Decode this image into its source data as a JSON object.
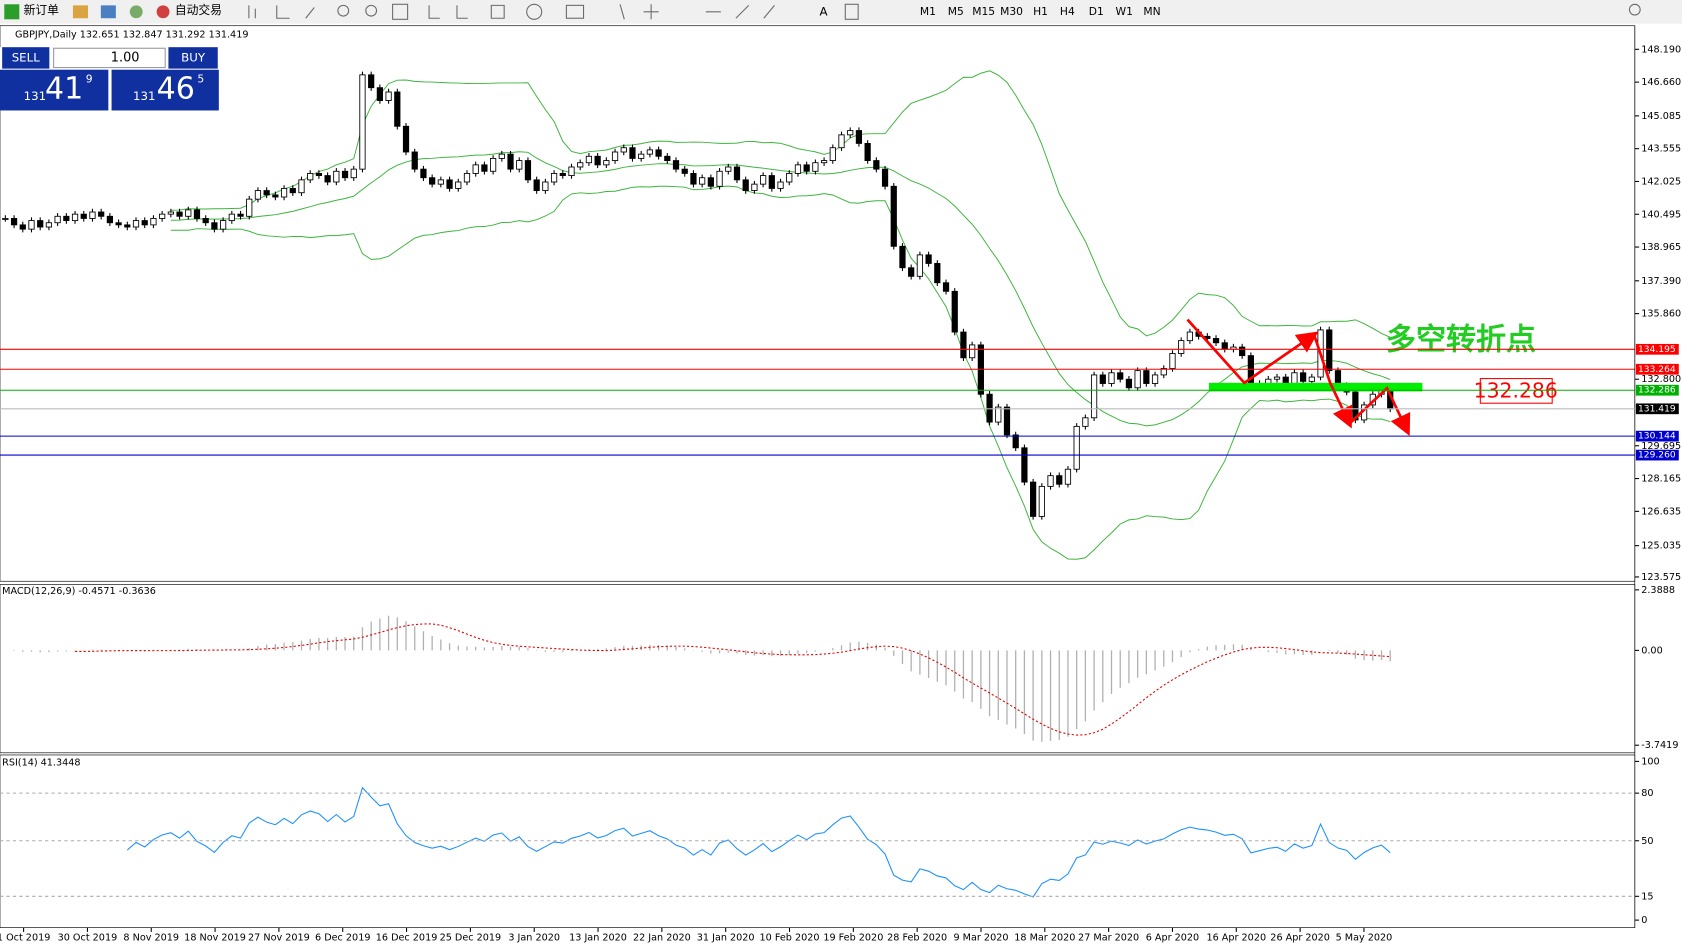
{
  "toolbar": {
    "new_order": "新订单",
    "auto_trading": "自动交易",
    "timeframes": [
      "M1",
      "M5",
      "M15",
      "M30",
      "H1",
      "H4",
      "D1",
      "W1",
      "MN"
    ]
  },
  "trade_panel": {
    "sell": "SELL",
    "buy": "BUY",
    "lots": "1.00",
    "bid": {
      "big": "131",
      "main": "41",
      "pip": "9"
    },
    "ask": {
      "big": "131",
      "main": "46",
      "pip": "5"
    }
  },
  "chart": {
    "header": "GBPJPY,Daily  132.651 132.847 131.292 131.419",
    "ylim": [
      123.375,
      149.29
    ],
    "yticks": [
      {
        "value": 148.19,
        "label": "148.190"
      },
      {
        "value": 146.66,
        "label": "146.660"
      },
      145.085,
      143.555,
      142.025,
      140.495,
      138.965,
      {
        "value": 137.39,
        "label": "137.390"
      },
      {
        "value": 135.86,
        "label": "135.860"
      },
      {
        "value": 132.8,
        "label": "132.800"
      },
      129.695,
      128.165,
      126.635,
      125.035,
      123.575
    ],
    "levels": [
      {
        "value": 134.195,
        "color": "#ff0000"
      },
      {
        "value": 133.264,
        "color": "#ff0000"
      },
      {
        "value": 132.286,
        "color": "#00b000"
      },
      {
        "value": 130.144,
        "color": "#0000cc"
      },
      {
        "value": 129.26,
        "label": "129.260",
        "color": "#0000cc"
      }
    ],
    "current": 131.419,
    "closes": [
      140.3,
      140.0,
      139.8,
      140.2,
      139.9,
      140.1,
      140.4,
      140.2,
      140.5,
      140.3,
      140.6,
      140.4,
      140.1,
      140.0,
      139.9,
      140.2,
      140.0,
      140.3,
      140.5,
      140.6,
      140.4,
      140.7,
      140.3,
      140.1,
      139.8,
      140.2,
      140.5,
      140.4,
      141.2,
      141.6,
      141.4,
      141.3,
      141.7,
      141.5,
      142.1,
      142.4,
      142.3,
      142.0,
      142.5,
      142.2,
      142.6,
      147.0,
      146.4,
      145.8,
      146.2,
      144.6,
      143.4,
      142.6,
      142.2,
      141.9,
      142.1,
      141.7,
      142.0,
      142.4,
      142.8,
      142.5,
      143.1,
      143.3,
      142.6,
      143.0,
      142.1,
      141.6,
      142.0,
      142.4,
      142.3,
      142.7,
      142.9,
      143.2,
      142.8,
      143.0,
      143.4,
      143.6,
      143.1,
      143.3,
      143.5,
      143.2,
      143.0,
      142.6,
      142.4,
      141.9,
      142.2,
      141.8,
      142.5,
      142.7,
      142.1,
      141.6,
      141.9,
      142.3,
      141.7,
      142.0,
      142.4,
      142.8,
      142.5,
      142.9,
      143.0,
      143.6,
      144.2,
      144.4,
      143.8,
      143.0,
      142.6,
      141.8,
      139.0,
      138.0,
      137.6,
      138.6,
      138.2,
      137.3,
      136.9,
      135.0,
      133.8,
      134.4,
      132.1,
      130.8,
      131.5,
      130.2,
      129.6,
      128.0,
      126.4,
      127.8,
      128.3,
      127.9,
      128.6,
      130.6,
      131.0,
      133.0,
      132.6,
      133.1,
      132.8,
      132.4,
      133.2,
      132.6,
      133.0,
      133.3,
      134.0,
      134.6,
      135.0,
      134.8,
      134.7,
      134.5,
      134.2,
      134.3,
      133.9,
      132.4,
      132.6,
      132.8,
      132.9,
      132.5,
      133.1,
      132.7,
      132.9,
      135.1,
      133.2,
      132.5,
      132.2,
      130.9,
      131.6,
      132.1,
      132.4,
      131.419
    ],
    "annotation": "多空转折点",
    "marked_level": "132.286",
    "dates": [
      "1 Oct 2019",
      "30 Oct 2019",
      "8 Nov 2019",
      "18 Nov 2019",
      "27 Nov 2019",
      "6 Dec 2019",
      "16 Dec 2019",
      "25 Dec 2019",
      "3 Jan 2020",
      "13 Jan 2020",
      "22 Jan 2020",
      "31 Jan 2020",
      "10 Feb 2020",
      "19 Feb 2020",
      "28 Feb 2020",
      "9 Mar 2020",
      "18 Mar 2020",
      "27 Mar 2020",
      "6 Apr 2020",
      "16 Apr 2020",
      "26 Apr 2020",
      "5 May 2020"
    ]
  },
  "macd": {
    "label": "MACD(12,26,9) -0.4571 -0.3636",
    "ylim": [
      -4.0,
      2.56
    ],
    "yticks": [
      2.3888,
      {
        "value": 0,
        "label": "0.00"
      },
      -3.7419
    ]
  },
  "rsi": {
    "label": "RSI(14) 41.3448",
    "ylim": [
      0,
      100
    ],
    "yticks": [
      100,
      80,
      50,
      15,
      0
    ],
    "grid": [
      80,
      50,
      15
    ]
  }
}
